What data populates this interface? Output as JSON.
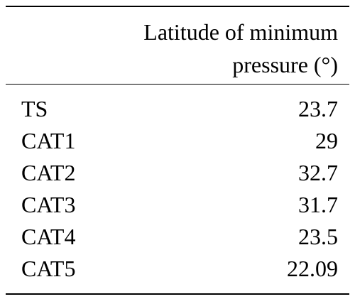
{
  "table": {
    "header_line1": "Latitude of minimum",
    "header_line2": "pressure (°)",
    "rows": [
      {
        "category": "TS",
        "value": "23.7"
      },
      {
        "category": "CAT1",
        "value": "29"
      },
      {
        "category": "CAT2",
        "value": "32.7"
      },
      {
        "category": "CAT3",
        "value": "31.7"
      },
      {
        "category": "CAT4",
        "value": "23.5"
      },
      {
        "category": "CAT5",
        "value": "22.09"
      }
    ]
  }
}
